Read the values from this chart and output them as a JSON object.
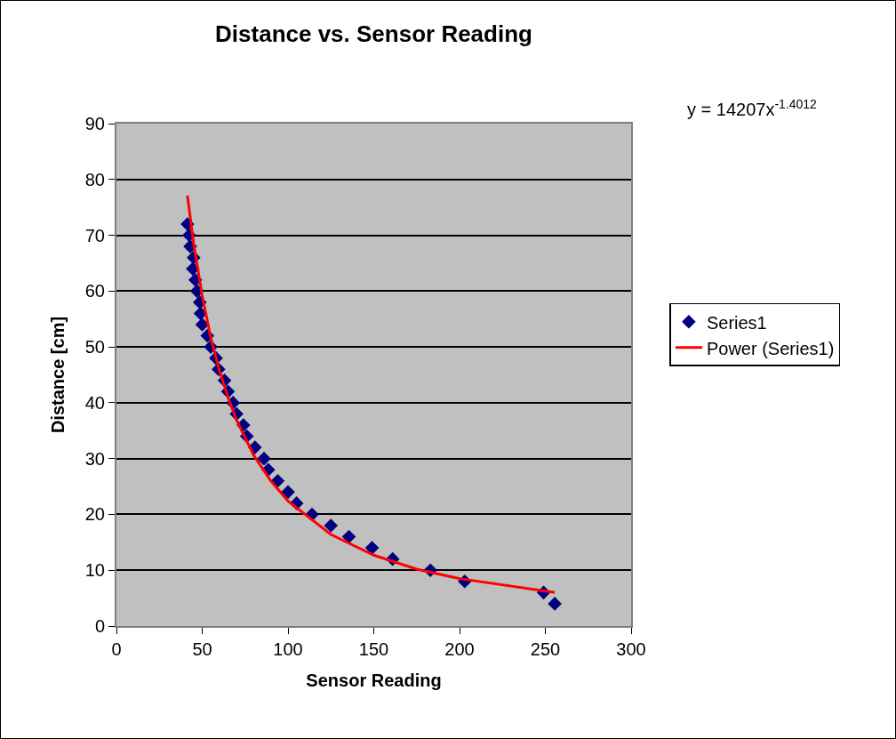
{
  "chart_data": {
    "type": "scatter",
    "title": "Distance vs. Sensor Reading",
    "xlabel": "Sensor Reading",
    "ylabel": "Distance [cm]",
    "annotations": [
      "y = 14207x$^{-1.4012}$"
    ],
    "xlim": [
      0,
      300
    ],
    "xticks": [
      0,
      50,
      100,
      150,
      200,
      250,
      300
    ],
    "ylim": [
      0,
      90
    ],
    "yticks": [
      0,
      10,
      20,
      30,
      40,
      50,
      60,
      70,
      80,
      90
    ],
    "grid": "y",
    "legend": "right",
    "series": [
      {
        "name": "Series1",
        "marker": "diamond",
        "color": "#000080",
        "x": [
          41.4,
          42.4,
          43,
          45,
          44.5,
          46,
          47,
          48.6,
          49,
          50,
          53,
          55,
          58,
          59.5,
          63,
          65,
          68,
          70,
          74,
          76,
          80.7,
          86,
          88.5,
          94,
          100,
          105,
          114,
          125,
          135.5,
          149,
          161,
          183,
          203,
          249,
          255.5
        ],
        "values": [
          72,
          70,
          68,
          66,
          64,
          62,
          60,
          58,
          56,
          54,
          52,
          50,
          48,
          46,
          44,
          42,
          40,
          38,
          36,
          34,
          32,
          30,
          28,
          26,
          24,
          22,
          20,
          18,
          16,
          14,
          12,
          10,
          8,
          6,
          4
        ]
      },
      {
        "name": "Power (Series1)",
        "type": "line",
        "marker": "none",
        "line_style": "solid",
        "color": "#ff0000",
        "x": [
          41.4,
          45,
          50,
          55,
          60,
          65,
          70,
          80,
          90,
          100,
          125,
          150,
          175,
          200,
          255.5
        ],
        "values": [
          77.1,
          68.5,
          59.1,
          51.7,
          45.8,
          41.0,
          36.9,
          30.6,
          26.0,
          22.4,
          16.4,
          12.7,
          10.2,
          8.5,
          6.0
        ]
      }
    ]
  }
}
